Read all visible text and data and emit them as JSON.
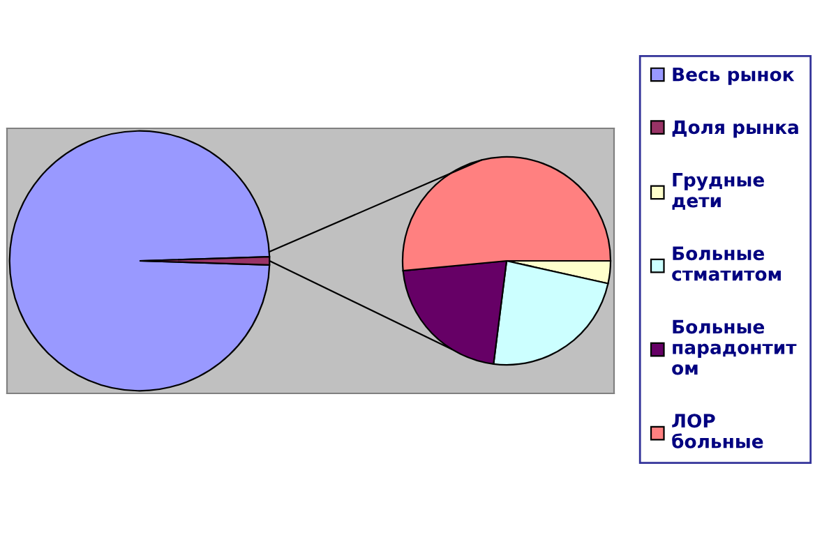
{
  "chart_data": [
    {
      "type": "pie",
      "categories": [
        "Весь рынок",
        "Доля рынка"
      ],
      "values": [
        99,
        1
      ],
      "colors": [
        "#9999ff",
        "#993366"
      ],
      "legend": "right"
    },
    {
      "type": "pie",
      "categories": [
        "Грудные дети",
        "Больные стматитом",
        "Больные парадонтитом",
        "ЛОР больные"
      ],
      "values": [
        3.5,
        23.5,
        21.5,
        51.5
      ],
      "colors": [
        "#ffffcc",
        "#ccffff",
        "#660066",
        "#ff8080"
      ],
      "legend": "right"
    }
  ]
}
